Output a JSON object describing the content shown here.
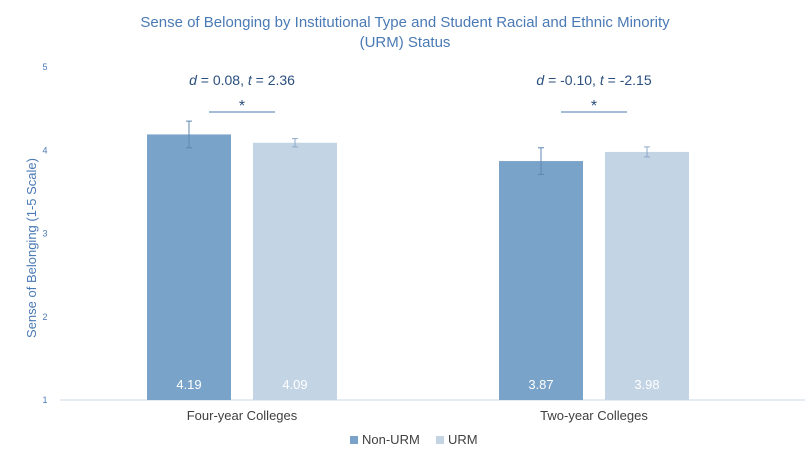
{
  "chart_data": {
    "type": "bar",
    "title_line1": "Sense of Belonging by Institutional Type and Student Racial and Ethnic Minority",
    "title_line2": "(URM) Status",
    "ylabel": "Sense of Belonging (1-5 Scale)",
    "xlabel": "",
    "ylim": [
      1,
      5
    ],
    "yticks": [
      "1",
      "2",
      "3",
      "4",
      "5"
    ],
    "categories": [
      "Four-year Colleges",
      "Two-year Colleges"
    ],
    "series": [
      {
        "name": "Non-URM",
        "values": [
          4.19,
          3.87
        ],
        "labels": [
          "4.19",
          "3.87"
        ],
        "error": [
          0.16,
          0.16
        ],
        "color": "#7aa3c9"
      },
      {
        "name": "URM",
        "values": [
          4.09,
          3.98
        ],
        "labels": [
          "4.09",
          "3.98"
        ],
        "error": [
          0.05,
          0.06
        ],
        "color": "#c3d4e5"
      }
    ],
    "annotations": [
      {
        "d_value": "0.08",
        "t_value": "2.36",
        "significance": "*"
      },
      {
        "d_value": "-0.10",
        "t_value": "-2.15",
        "significance": "*"
      }
    ],
    "grid": false,
    "legend_position": "bottom"
  }
}
